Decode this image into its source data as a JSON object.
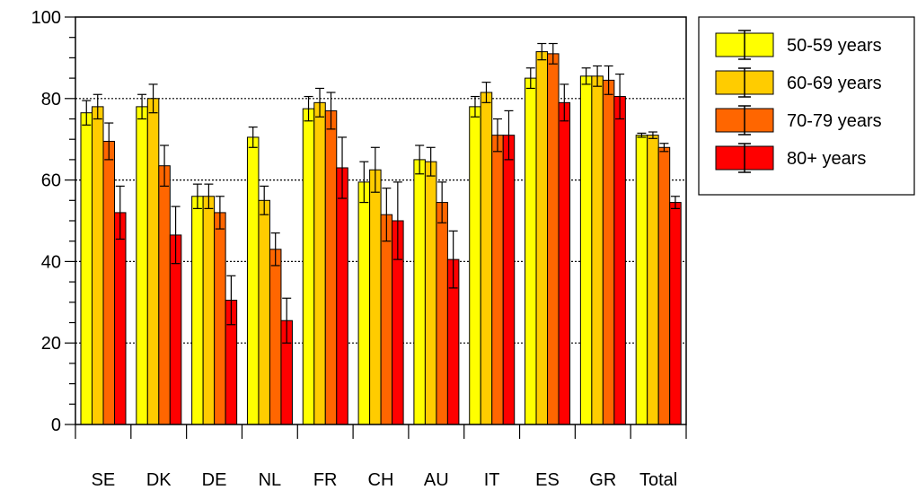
{
  "chart_data": {
    "type": "bar",
    "title": "",
    "xlabel": "",
    "ylabel": "",
    "ylim": [
      0,
      100
    ],
    "yticks": [
      "0",
      "20",
      "40",
      "60",
      "80",
      "100"
    ],
    "grid": "dotted horizontal at 20, 40, 60, 80",
    "legend_position": "right, outside plot, top",
    "categories": [
      "SE",
      "DK",
      "DE",
      "NL",
      "FR",
      "CH",
      "AU",
      "IT",
      "ES",
      "GR",
      "Total"
    ],
    "series": [
      {
        "name": "50-59 years",
        "color": "#FFFF00",
        "values": [
          76.5,
          78,
          56,
          70.5,
          77.5,
          59.5,
          65,
          78,
          85,
          85.5,
          71
        ],
        "errors": [
          3,
          3,
          3,
          2.5,
          3,
          5,
          3.5,
          2.5,
          2.5,
          2,
          0.5
        ]
      },
      {
        "name": "60-69 years",
        "color": "#FFCC00",
        "values": [
          78,
          80,
          56,
          55,
          79,
          62.5,
          64.5,
          81.5,
          91.5,
          85.5,
          71
        ],
        "errors": [
          3,
          3.5,
          3,
          3.5,
          3.5,
          5.5,
          3.5,
          2.5,
          2,
          2.5,
          0.8
        ]
      },
      {
        "name": "70-79 years",
        "color": "#FF6600",
        "values": [
          69.5,
          63.5,
          52,
          43,
          77,
          51.5,
          54.5,
          71,
          91,
          84.5,
          68
        ],
        "errors": [
          4.5,
          5,
          4,
          4,
          4.5,
          6.5,
          5,
          4,
          2.5,
          3.5,
          1
        ]
      },
      {
        "name": "80+ years",
        "color": "#FF0000",
        "values": [
          52,
          46.5,
          30.5,
          25.5,
          63,
          50,
          40.5,
          71,
          79,
          80.5,
          54.5
        ],
        "errors": [
          6.5,
          7,
          6,
          5.5,
          7.5,
          9.5,
          7,
          6,
          4.5,
          5.5,
          1.5
        ]
      }
    ]
  }
}
